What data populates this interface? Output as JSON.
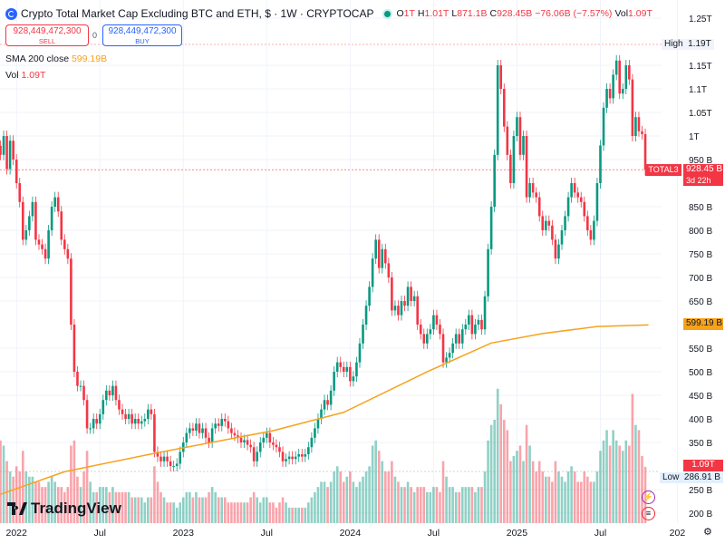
{
  "header": {
    "title": "Crypto Total Market Cap Excluding BTC and ETH, $ · 1W · CRYPTOCAP",
    "ohlc": {
      "o_label": "O",
      "o": "1T",
      "h_label": "H",
      "h": "1.01T",
      "l_label": "L",
      "l": "871.1B",
      "c_label": "C",
      "c": "928.45B",
      "change": "−76.06B (−7.57%)",
      "vol_label": "Vol",
      "vol": "1.09T"
    },
    "sell_price": "928,449,472,300",
    "sell_label": "SELL",
    "buy_price": "928,449,472,300",
    "buy_label": "BUY",
    "spread": "0"
  },
  "indicators": {
    "sma_label": "SMA 200 close",
    "sma_value": "599.19B",
    "vol_label": "Vol",
    "vol_value": "1.09T"
  },
  "price_tags": {
    "symbol": "TOTAL3",
    "last": "928.45 B",
    "countdown": "3d 22h",
    "sma": "599.19 B",
    "volume": "1.09T",
    "high_label": "High",
    "high": "1.19T",
    "low_label": "Low",
    "low": "286.91 B"
  },
  "brand": "TradingView",
  "colors": {
    "up": "#089981",
    "down": "#f23645",
    "sma": "#f7a21b",
    "accent": "#2962ff"
  },
  "chart_data": {
    "type": "candlestick",
    "interval": "1W",
    "unit": "B",
    "ylim": [
      180,
      1270
    ],
    "y_ticks": [
      "1.25T",
      "1.15T",
      "1.1T",
      "1.05T",
      "1T",
      "950 B",
      "850 B",
      "800 B",
      "750 B",
      "700 B",
      "650 B",
      "550 B",
      "500 B",
      "450 B",
      "400 B",
      "350 B",
      "250 B",
      "200 B"
    ],
    "y_tick_values": [
      1250,
      1150,
      1100,
      1050,
      1000,
      950,
      850,
      800,
      750,
      700,
      650,
      550,
      500,
      450,
      400,
      350,
      250,
      200
    ],
    "x_ticks": [
      "2022",
      "Jul",
      "2023",
      "Jul",
      "2024",
      "Jul",
      "2025",
      "Jul",
      "202"
    ],
    "x_tick_week_index": [
      5,
      31,
      57,
      83,
      109,
      135,
      161,
      187,
      211
    ],
    "closes": [
      960,
      1000,
      930,
      990,
      950,
      900,
      860,
      780,
      800,
      830,
      860,
      780,
      770,
      760,
      740,
      800,
      850,
      870,
      840,
      780,
      760,
      740,
      600,
      500,
      470,
      470,
      440,
      380,
      380,
      400,
      390,
      410,
      440,
      460,
      450,
      470,
      440,
      420,
      410,
      400,
      410,
      390,
      400,
      390,
      395,
      400,
      420,
      410,
      330,
      320,
      310,
      320,
      310,
      300,
      300,
      305,
      330,
      350,
      370,
      380,
      375,
      390,
      370,
      380,
      360,
      350,
      380,
      390,
      385,
      400,
      395,
      380,
      370,
      365,
      360,
      350,
      355,
      345,
      340,
      310,
      330,
      350,
      360,
      370,
      350,
      345,
      340,
      330,
      310,
      315,
      320,
      315,
      320,
      325,
      320,
      325,
      340,
      360,
      380,
      400,
      420,
      440,
      430,
      460,
      500,
      520,
      510,
      500,
      510,
      480,
      490,
      520,
      560,
      600,
      640,
      680,
      740,
      780,
      720,
      760,
      730,
      700,
      630,
      640,
      620,
      650,
      640,
      680,
      650,
      660,
      600,
      580,
      560,
      580,
      590,
      620,
      600,
      580,
      520,
      530,
      540,
      560,
      580,
      560,
      590,
      600,
      620,
      580,
      600,
      610,
      590,
      660,
      760,
      850,
      960,
      1150,
      1100,
      1020,
      960,
      900,
      1000,
      1040,
      960,
      1000,
      870,
      900,
      880,
      870,
      830,
      800,
      820,
      810,
      780,
      740,
      770,
      800,
      830,
      870,
      900,
      880,
      870,
      860,
      830,
      800,
      780,
      820,
      900,
      980,
      1060,
      1100,
      1080,
      1130,
      1160,
      1090,
      1100,
      1150,
      1120,
      1000,
      1040,
      1010,
      1004,
      928
    ],
    "volume_T": [
      1.6,
      1.5,
      1.2,
      1.0,
      0.9,
      1.1,
      1.0,
      1.4,
      1.0,
      0.9,
      0.9,
      0.8,
      0.8,
      0.7,
      0.7,
      0.8,
      0.9,
      0.8,
      0.7,
      0.7,
      0.6,
      0.7,
      1.5,
      1.6,
      0.9,
      0.7,
      1.0,
      1.4,
      0.8,
      0.6,
      0.6,
      0.7,
      0.7,
      0.7,
      0.6,
      0.7,
      0.6,
      0.6,
      0.6,
      0.6,
      0.6,
      0.5,
      0.5,
      0.5,
      0.5,
      0.4,
      0.5,
      0.5,
      1.1,
      0.8,
      0.6,
      0.5,
      0.4,
      0.4,
      0.4,
      0.3,
      0.4,
      0.5,
      0.6,
      0.6,
      0.5,
      0.6,
      0.5,
      0.5,
      0.5,
      0.6,
      0.7,
      0.6,
      0.5,
      0.5,
      0.5,
      0.4,
      0.4,
      0.4,
      0.4,
      0.4,
      0.4,
      0.4,
      0.5,
      0.6,
      0.5,
      0.4,
      0.5,
      0.5,
      0.4,
      0.4,
      0.3,
      0.4,
      0.5,
      0.4,
      0.3,
      0.3,
      0.3,
      0.3,
      0.3,
      0.3,
      0.4,
      0.5,
      0.6,
      0.7,
      0.8,
      0.8,
      0.7,
      0.8,
      1.0,
      1.1,
      1.0,
      0.8,
      0.9,
      1.0,
      0.8,
      0.7,
      0.8,
      0.9,
      1.0,
      1.1,
      1.5,
      1.6,
      1.4,
      1.2,
      1.0,
      1.0,
      1.2,
      0.9,
      0.8,
      0.7,
      0.7,
      0.8,
      0.7,
      0.6,
      0.7,
      0.7,
      0.7,
      0.6,
      0.6,
      0.7,
      0.7,
      0.6,
      1.2,
      0.9,
      0.7,
      0.7,
      0.6,
      0.6,
      0.7,
      0.7,
      0.7,
      0.7,
      0.6,
      0.7,
      0.7,
      1.0,
      1.6,
      1.9,
      2.0,
      2.6,
      2.3,
      2.0,
      1.8,
      1.2,
      1.3,
      1.4,
      1.5,
      1.2,
      1.9,
      1.5,
      1.2,
      1.0,
      1.2,
      1.0,
      0.9,
      0.9,
      0.8,
      1.2,
      1.0,
      0.9,
      0.8,
      1.0,
      1.1,
      1.0,
      0.8,
      0.8,
      1.0,
      0.9,
      0.8,
      0.8,
      1.0,
      1.4,
      1.6,
      1.8,
      1.5,
      1.8,
      1.6,
      1.5,
      1.4,
      1.6,
      1.5,
      2.5,
      1.9,
      1.8,
      1.3,
      1.09
    ],
    "sma200": {
      "name": "SMA 200 close",
      "week_index": [
        0,
        20,
        48,
        85,
        107,
        133,
        153,
        169,
        186,
        202
      ],
      "values": [
        240,
        288,
        327,
        375,
        414,
        500,
        561,
        581,
        596,
        599.19
      ]
    },
    "high": 1190,
    "low": 286.91,
    "last": 928.45
  }
}
